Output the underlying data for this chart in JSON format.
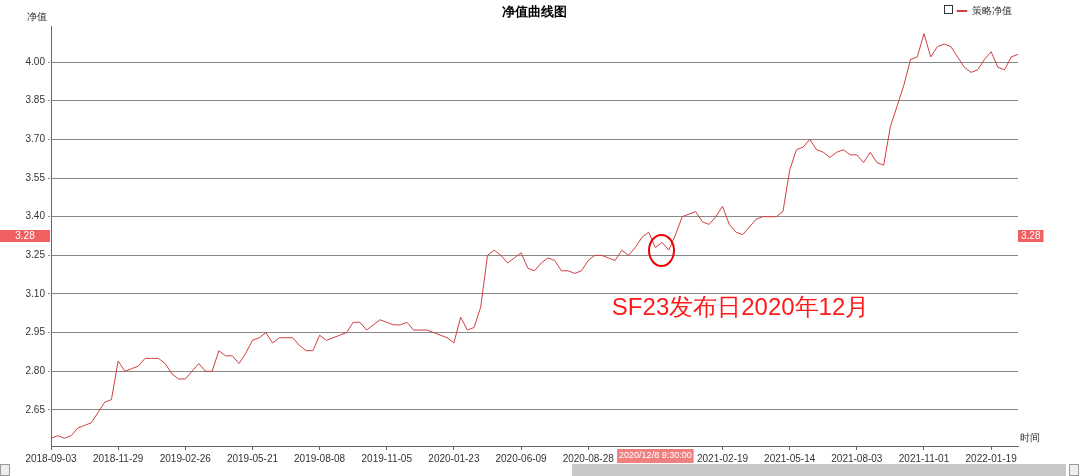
{
  "chart_data": {
    "type": "line",
    "title": "净值曲线图",
    "ylabel": "净值",
    "xlabel": "时间",
    "categories": [
      "2018-09-03",
      null,
      null,
      null,
      null,
      null,
      null,
      null,
      null,
      null,
      "2018-11-29",
      null,
      null,
      null,
      null,
      null,
      null,
      null,
      null,
      null,
      "2019-02-26",
      null,
      null,
      null,
      null,
      null,
      null,
      null,
      null,
      null,
      "2019-05-21",
      null,
      null,
      null,
      null,
      null,
      null,
      null,
      null,
      null,
      "2019-08-08",
      null,
      null,
      null,
      null,
      null,
      null,
      null,
      null,
      null,
      "2019-11-05",
      null,
      null,
      null,
      null,
      null,
      null,
      null,
      null,
      null,
      "2020-01-23",
      null,
      null,
      null,
      null,
      null,
      null,
      null,
      null,
      null,
      "2020-06-09",
      null,
      null,
      null,
      null,
      null,
      null,
      null,
      null,
      null,
      "2020-08-28",
      null,
      null,
      null,
      null,
      null,
      null,
      null,
      null,
      null,
      null,
      null,
      null,
      null,
      null,
      null,
      null,
      null,
      null,
      null,
      "2021-02-19",
      null,
      null,
      null,
      null,
      null,
      null,
      null,
      null,
      null,
      "2021-05-14",
      null,
      null,
      null,
      null,
      null,
      null,
      null,
      null,
      null,
      "2021-08-03",
      null,
      null,
      null,
      null,
      null,
      null,
      null,
      null,
      null,
      "2021-11-01",
      null,
      null,
      null,
      null,
      null,
      null,
      null,
      null,
      null,
      "2022-01-19",
      null,
      null,
      null,
      null
    ],
    "series": [
      {
        "name": "策略净值",
        "color": "#d04040",
        "values": [
          2.54,
          2.55,
          2.54,
          2.55,
          2.58,
          2.59,
          2.6,
          2.64,
          2.68,
          2.69,
          2.84,
          2.8,
          2.81,
          2.82,
          2.85,
          2.85,
          2.85,
          2.83,
          2.79,
          2.77,
          2.77,
          2.8,
          2.83,
          2.8,
          2.8,
          2.88,
          2.86,
          2.86,
          2.83,
          2.87,
          2.92,
          2.93,
          2.95,
          2.91,
          2.93,
          2.93,
          2.93,
          2.9,
          2.88,
          2.88,
          2.94,
          2.92,
          2.93,
          2.94,
          2.95,
          2.99,
          2.99,
          2.96,
          2.98,
          3.0,
          2.99,
          2.98,
          2.98,
          2.99,
          2.96,
          2.96,
          2.96,
          2.95,
          2.94,
          2.93,
          2.91,
          3.01,
          2.96,
          2.97,
          3.05,
          3.25,
          3.27,
          3.25,
          3.22,
          3.24,
          3.26,
          3.2,
          3.19,
          3.22,
          3.24,
          3.23,
          3.19,
          3.19,
          3.18,
          3.19,
          3.23,
          3.25,
          3.25,
          3.24,
          3.23,
          3.27,
          3.25,
          3.28,
          3.32,
          3.34,
          3.28,
          3.3,
          3.27,
          3.33,
          3.4,
          3.41,
          3.42,
          3.38,
          3.37,
          3.4,
          3.44,
          3.37,
          3.34,
          3.33,
          3.36,
          3.39,
          3.4,
          3.4,
          3.4,
          3.42,
          3.58,
          3.66,
          3.67,
          3.7,
          3.66,
          3.65,
          3.63,
          3.65,
          3.66,
          3.64,
          3.64,
          3.61,
          3.65,
          3.61,
          3.6,
          3.75,
          3.83,
          3.91,
          4.01,
          4.02,
          4.11,
          4.02,
          4.06,
          4.07,
          4.06,
          4.02,
          3.98,
          3.96,
          3.97,
          4.01,
          4.04,
          3.98,
          3.97,
          4.02,
          4.03
        ]
      }
    ],
    "ylim": [
      2.51,
      4.14
    ],
    "yticks": [
      2.65,
      {
        "value": 2.8,
        "label": "2.80"
      },
      2.95,
      {
        "value": 3.1,
        "label": "3.10"
      },
      3.25,
      {
        "value": 3.4,
        "label": "3.40"
      },
      3.55,
      {
        "value": 3.7,
        "label": "3.70"
      },
      3.85,
      {
        "value": 4,
        "label": "4.00"
      }
    ],
    "grid": "y",
    "legend": "top right",
    "marker": "none",
    "line_style": "solid",
    "annotations": [
      "SF23发布日2020年12月",
      "3.28",
      "2020/12/8 9:30:00"
    ]
  }
}
